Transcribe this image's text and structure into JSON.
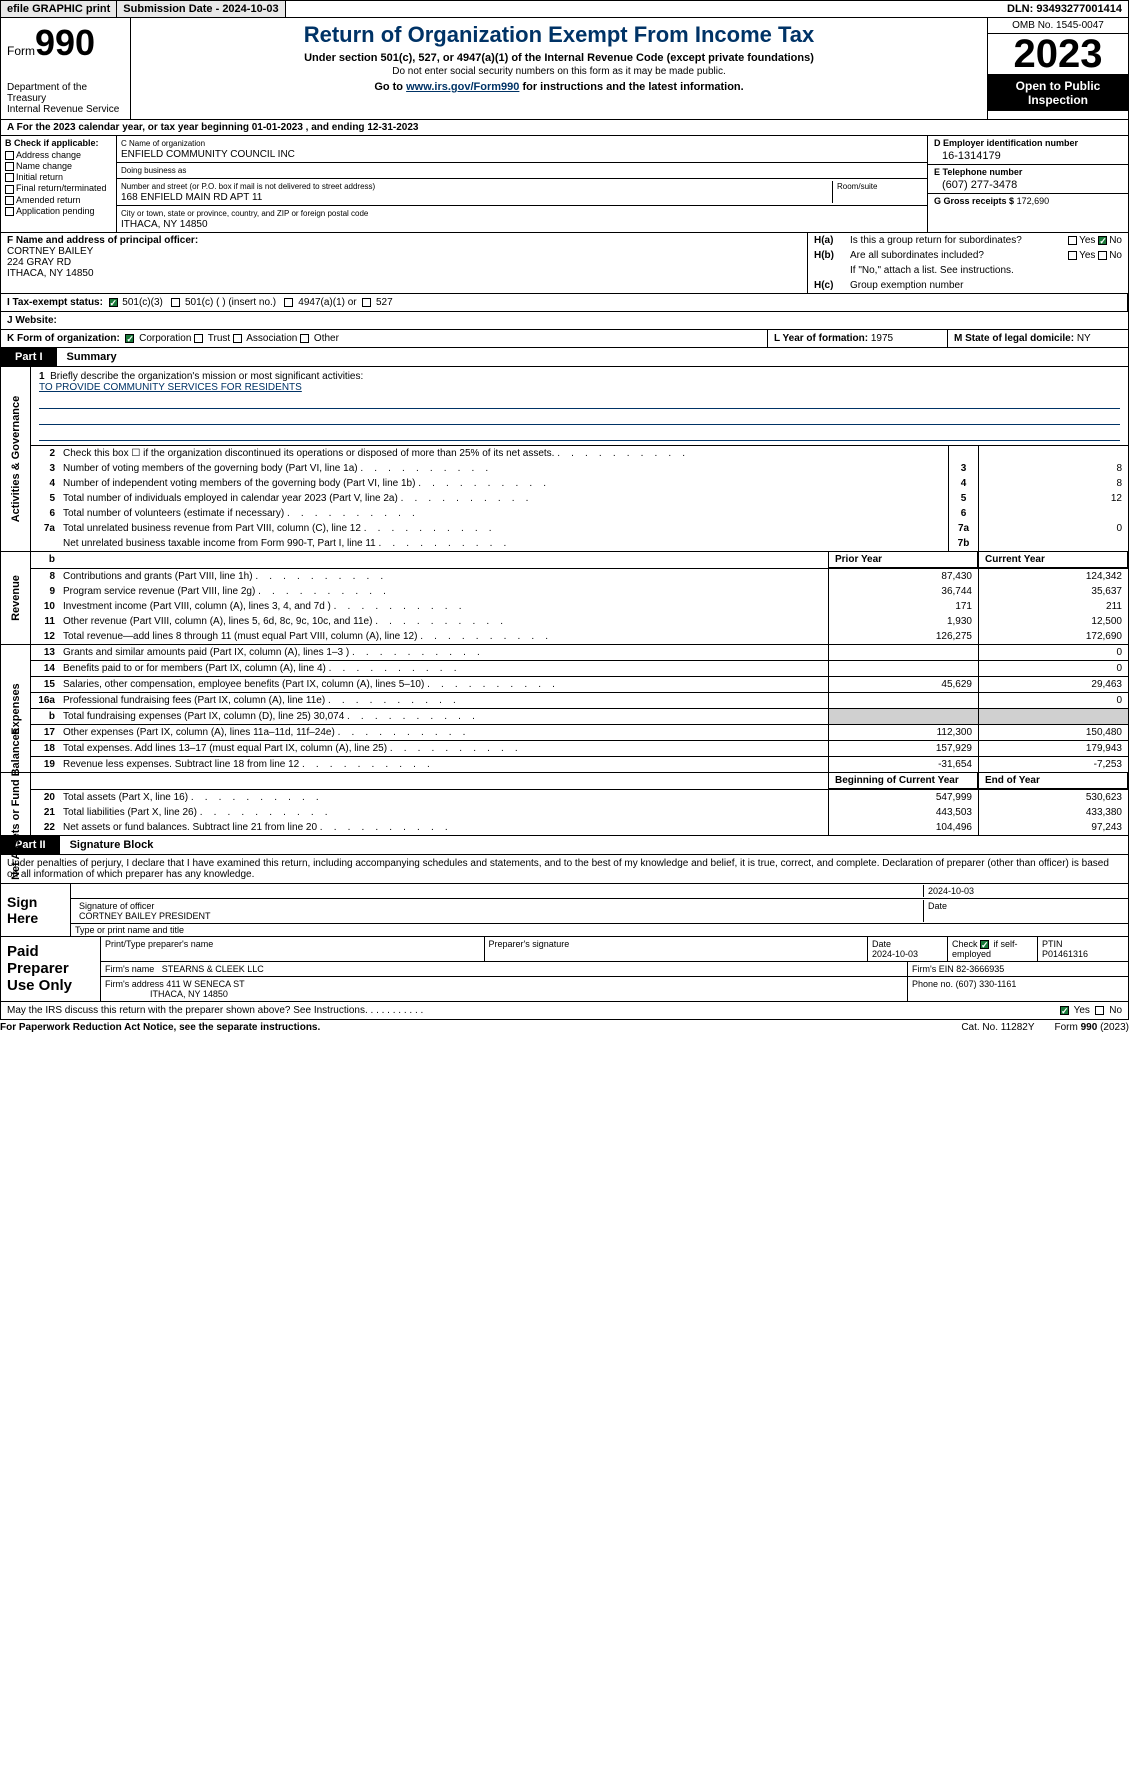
{
  "topbar": {
    "efile": "efile GRAPHIC print",
    "submission": "Submission Date - 2024-10-03",
    "dln": "DLN: 93493277001414"
  },
  "header": {
    "form_prefix": "Form",
    "form_no": "990",
    "dept": "Department of the Treasury\nInternal Revenue Service",
    "title": "Return of Organization Exempt From Income Tax",
    "sub": "Under section 501(c), 527, or 4947(a)(1) of the Internal Revenue Code (except private foundations)",
    "sub2": "Do not enter social security numbers on this form as it may be made public.",
    "sub3_pre": "Go to ",
    "sub3_link": "www.irs.gov/Form990",
    "sub3_post": " for instructions and the latest information.",
    "omb": "OMB No. 1545-0047",
    "year": "2023",
    "inspection": "Open to Public Inspection"
  },
  "row_a": "A For the 2023 calendar year, or tax year beginning 01-01-2023    , and ending 12-31-2023",
  "col_b": {
    "lbl": "B Check if applicable:",
    "opts": [
      "Address change",
      "Name change",
      "Initial return",
      "Final return/terminated",
      "Amended return",
      "Application pending"
    ]
  },
  "col_c": {
    "name_lbl": "C Name of organization",
    "name": "ENFIELD COMMUNITY COUNCIL INC",
    "dba_lbl": "Doing business as",
    "dba": "",
    "addr_lbl": "Number and street (or P.O. box if mail is not delivered to street address)",
    "room_lbl": "Room/suite",
    "addr": "168 ENFIELD MAIN RD APT 11",
    "city_lbl": "City or town, state or province, country, and ZIP or foreign postal code",
    "city": "ITHACA, NY  14850"
  },
  "col_d": {
    "ein_lbl": "D Employer identification number",
    "ein": "16-1314179",
    "tel_lbl": "E Telephone number",
    "tel": "(607) 277-3478",
    "gross_lbl": "G Gross receipts $",
    "gross": "172,690"
  },
  "sec_f": {
    "lbl": "F  Name and address of principal officer:",
    "name": "CORTNEY BAILEY",
    "addr1": "224 GRAY RD",
    "addr2": "ITHACA, NY  14850"
  },
  "sec_h": {
    "a": "Is this a group return for subordinates?",
    "b": "Are all subordinates included?",
    "note": "If \"No,\" attach a list. See instructions.",
    "c": "Group exemption number"
  },
  "row_i": {
    "lbl": "I  Tax-exempt status:",
    "o1": "501(c)(3)",
    "o2": "501(c) (  ) (insert no.)",
    "o3": "4947(a)(1) or",
    "o4": "527"
  },
  "row_j": {
    "lbl": "J  Website:"
  },
  "row_k": {
    "lbl": "K Form of organization:",
    "o1": "Corporation",
    "o2": "Trust",
    "o3": "Association",
    "o4": "Other"
  },
  "row_l": {
    "lbl": "L Year of formation:",
    "val": "1975"
  },
  "row_m": {
    "lbl": "M State of legal domicile:",
    "val": "NY"
  },
  "part1": {
    "num": "Part I",
    "title": "Summary"
  },
  "mission": {
    "lbl": "Briefly describe the organization's mission or most significant activities:",
    "txt": "TO PROVIDE COMMUNITY SERVICES FOR RESIDENTS"
  },
  "vtabs": {
    "gov": "Activities & Governance",
    "rev": "Revenue",
    "exp": "Expenses",
    "net": "Net Assets or Fund Balances"
  },
  "lines_gov": [
    {
      "n": "2",
      "t": "Check this box ☐ if the organization discontinued its operations or disposed of more than 25% of its net assets.",
      "box": "",
      "v": ""
    },
    {
      "n": "3",
      "t": "Number of voting members of the governing body (Part VI, line 1a)",
      "box": "3",
      "v": "8"
    },
    {
      "n": "4",
      "t": "Number of independent voting members of the governing body (Part VI, line 1b)",
      "box": "4",
      "v": "8"
    },
    {
      "n": "5",
      "t": "Total number of individuals employed in calendar year 2023 (Part V, line 2a)",
      "box": "5",
      "v": "12"
    },
    {
      "n": "6",
      "t": "Total number of volunteers (estimate if necessary)",
      "box": "6",
      "v": ""
    },
    {
      "n": "7a",
      "t": "Total unrelated business revenue from Part VIII, column (C), line 12",
      "box": "7a",
      "v": "0"
    },
    {
      "n": "",
      "t": "Net unrelated business taxable income from Form 990-T, Part I, line 11",
      "box": "7b",
      "v": ""
    }
  ],
  "col_hdrs": {
    "prior": "Prior Year",
    "current": "Current Year",
    "begin": "Beginning of Current Year",
    "end": "End of Year"
  },
  "lines_rev": [
    {
      "n": "8",
      "t": "Contributions and grants (Part VIII, line 1h)",
      "p": "87,430",
      "c": "124,342"
    },
    {
      "n": "9",
      "t": "Program service revenue (Part VIII, line 2g)",
      "p": "36,744",
      "c": "35,637"
    },
    {
      "n": "10",
      "t": "Investment income (Part VIII, column (A), lines 3, 4, and 7d )",
      "p": "171",
      "c": "211"
    },
    {
      "n": "11",
      "t": "Other revenue (Part VIII, column (A), lines 5, 6d, 8c, 9c, 10c, and 11e)",
      "p": "1,930",
      "c": "12,500"
    },
    {
      "n": "12",
      "t": "Total revenue—add lines 8 through 11 (must equal Part VIII, column (A), line 12)",
      "p": "126,275",
      "c": "172,690"
    }
  ],
  "lines_exp": [
    {
      "n": "13",
      "t": "Grants and similar amounts paid (Part IX, column (A), lines 1–3 )",
      "p": "",
      "c": "0"
    },
    {
      "n": "14",
      "t": "Benefits paid to or for members (Part IX, column (A), line 4)",
      "p": "",
      "c": "0"
    },
    {
      "n": "15",
      "t": "Salaries, other compensation, employee benefits (Part IX, column (A), lines 5–10)",
      "p": "45,629",
      "c": "29,463"
    },
    {
      "n": "16a",
      "t": "Professional fundraising fees (Part IX, column (A), line 11e)",
      "p": "",
      "c": "0"
    },
    {
      "n": "b",
      "t": "Total fundraising expenses (Part IX, column (D), line 25) 30,074",
      "p": "shade",
      "c": "shade"
    },
    {
      "n": "17",
      "t": "Other expenses (Part IX, column (A), lines 11a–11d, 11f–24e)",
      "p": "112,300",
      "c": "150,480"
    },
    {
      "n": "18",
      "t": "Total expenses. Add lines 13–17 (must equal Part IX, column (A), line 25)",
      "p": "157,929",
      "c": "179,943"
    },
    {
      "n": "19",
      "t": "Revenue less expenses. Subtract line 18 from line 12",
      "p": "-31,654",
      "c": "-7,253"
    }
  ],
  "lines_net": [
    {
      "n": "20",
      "t": "Total assets (Part X, line 16)",
      "p": "547,999",
      "c": "530,623"
    },
    {
      "n": "21",
      "t": "Total liabilities (Part X, line 26)",
      "p": "443,503",
      "c": "433,380"
    },
    {
      "n": "22",
      "t": "Net assets or fund balances. Subtract line 21 from line 20",
      "p": "104,496",
      "c": "97,243"
    }
  ],
  "part2": {
    "num": "Part II",
    "title": "Signature Block"
  },
  "sig_decl": "Under penalties of perjury, I declare that I have examined this return, including accompanying schedules and statements, and to the best of my knowledge and belief, it is true, correct, and complete. Declaration of preparer (other than officer) is based on all information of which preparer has any knowledge.",
  "sign": {
    "hdr": "Sign Here",
    "sig_lbl": "Signature of officer",
    "date_lbl": "Date",
    "date": "2024-10-03",
    "name": "CORTNEY BAILEY PRESIDENT",
    "name_lbl": "Type or print name and title"
  },
  "prep": {
    "hdr": "Paid Preparer Use Only",
    "r1": {
      "c1": "Print/Type preparer's name",
      "c2": "Preparer's signature",
      "c3_lbl": "Date",
      "c3": "2024-10-03",
      "c4_lbl": "Check",
      "c4_txt": "if self-employed",
      "c5_lbl": "PTIN",
      "c5": "P01461316"
    },
    "r2": {
      "lbl": "Firm's name",
      "val": "STEARNS & CLEEK LLC",
      "ein_lbl": "Firm's EIN",
      "ein": "82-3666935"
    },
    "r3": {
      "lbl": "Firm's address",
      "val1": "411 W SENECA ST",
      "val2": "ITHACA, NY  14850",
      "ph_lbl": "Phone no.",
      "ph": "(607) 330-1161"
    }
  },
  "discuss": "May the IRS discuss this return with the preparer shown above? See Instructions.",
  "footer": {
    "l": "For Paperwork Reduction Act Notice, see the separate instructions.",
    "c": "Cat. No. 11282Y",
    "r": "Form 990 (2023)"
  }
}
